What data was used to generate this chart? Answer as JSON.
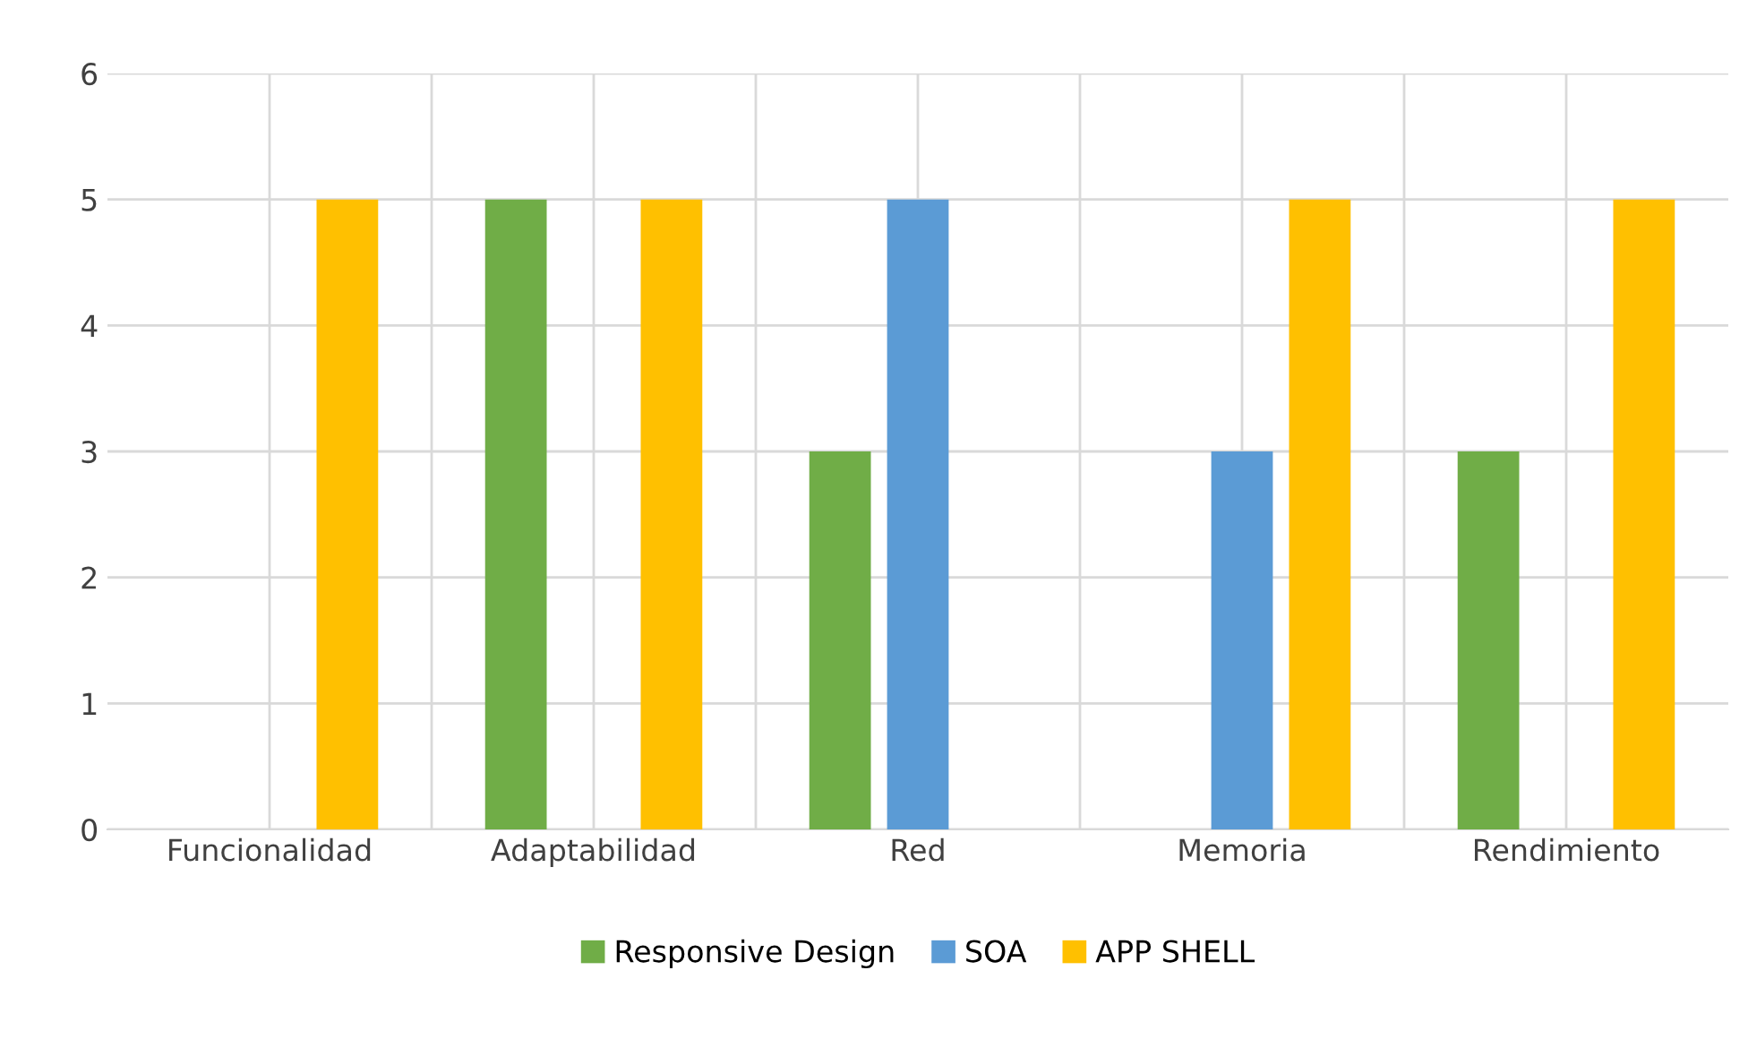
{
  "chart_data": {
    "type": "bar",
    "categories": [
      "Funcionalidad",
      "Adaptabilidad",
      "Red",
      "Memoria",
      "Rendimiento"
    ],
    "series": [
      {
        "name": "Responsive Design",
        "color": "#70ad47",
        "values": [
          0,
          5,
          3,
          0,
          3
        ]
      },
      {
        "name": "SOA",
        "color": "#5b9bd5",
        "values": [
          0,
          0,
          5,
          3,
          0
        ]
      },
      {
        "name": "APP SHELL",
        "color": "#ffc000",
        "values": [
          5,
          5,
          0,
          5,
          5
        ]
      }
    ],
    "ylim": [
      0,
      6
    ],
    "yticks": [
      0,
      1,
      2,
      3,
      4,
      5,
      6
    ],
    "grid": true,
    "legend": "bottom"
  }
}
